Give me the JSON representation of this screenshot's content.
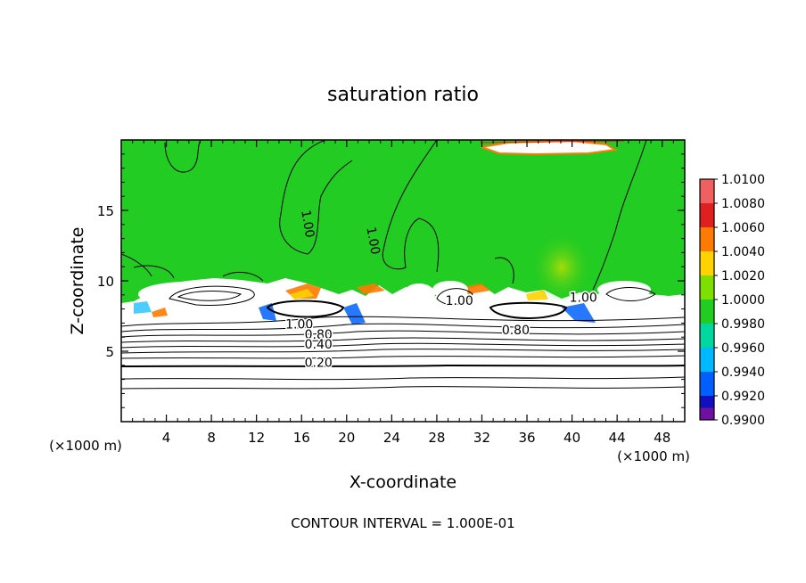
{
  "chart_data": {
    "type": "heatmap",
    "title": "saturation ratio",
    "xlabel": "X-coordinate",
    "ylabel": "Z-coordinate",
    "x_unit": "(×1000 m)",
    "z_unit": "(×1000 m)",
    "xlim": [
      0,
      50
    ],
    "ylim": [
      0,
      20
    ],
    "x_ticks": [
      4,
      8,
      12,
      16,
      20,
      24,
      28,
      32,
      36,
      40,
      44,
      48
    ],
    "y_ticks": [
      5,
      10,
      15
    ],
    "footer": "CONTOUR INTERVAL = 1.000E-01",
    "contour_labels": [
      {
        "text": "1.00",
        "x": 15.8,
        "z": 6.6
      },
      {
        "text": "0.80",
        "x": 17.5,
        "z": 5.9
      },
      {
        "text": "0.40",
        "x": 17.5,
        "z": 5.2
      },
      {
        "text": "0.20",
        "x": 17.5,
        "z": 3.9
      },
      {
        "text": "0.80",
        "x": 35.0,
        "z": 6.2
      },
      {
        "text": "1.00",
        "x": 41.0,
        "z": 8.5
      },
      {
        "text": "1.00",
        "x": 30.0,
        "z": 8.3
      },
      {
        "text": "1.00",
        "x": 16.2,
        "z": 14.0
      },
      {
        "text": "1.00",
        "x": 22.0,
        "z": 12.8
      }
    ],
    "colorbar": {
      "levels": [
        "1.0100",
        "1.0080",
        "1.0060",
        "1.0040",
        "1.0020",
        "1.0000",
        "0.9980",
        "0.9960",
        "0.9940",
        "0.9920",
        "0.9900"
      ],
      "colors": [
        "#f06060",
        "#e02020",
        "#ff7a00",
        "#ffd200",
        "#7ee000",
        "#22cc22",
        "#00d6a0",
        "#00b8ff",
        "#0060ff",
        "#1010c0",
        "#7010a0"
      ]
    },
    "field_colors": {
      "background": "#22cc22",
      "subsaturated": "#ffffff",
      "supersaturated": "#ff7a00",
      "dry_edge": "#0060ff"
    }
  }
}
